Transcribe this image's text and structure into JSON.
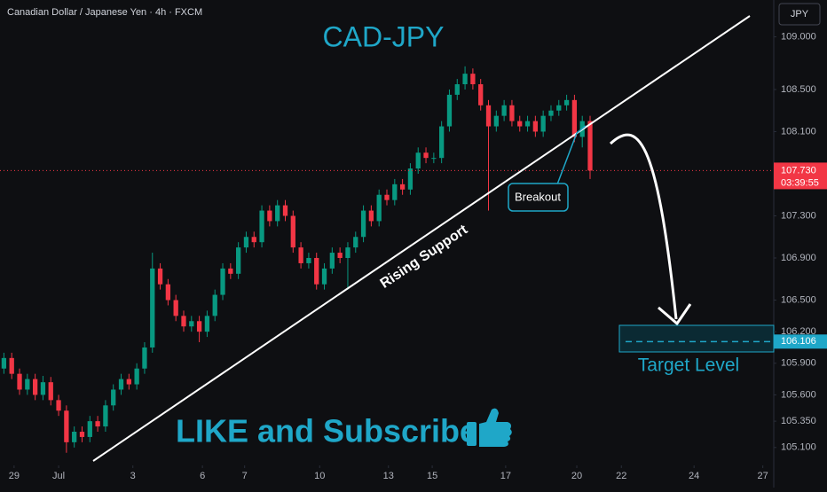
{
  "header": {
    "symbol": "Canadian Dollar / Japanese Yen · 4h · FXCM",
    "currency": "JPY"
  },
  "chart_data": {
    "type": "candlestick",
    "title": "CAD-JPY",
    "open": [
      105.85,
      105.95,
      105.8,
      105.65,
      105.75,
      105.6,
      105.72,
      105.55,
      105.45,
      105.15,
      105.25,
      105.2,
      105.35,
      105.3,
      105.5,
      105.65,
      105.75,
      105.7,
      105.85,
      106.05,
      106.8,
      106.65,
      106.5,
      106.35,
      106.25,
      106.3,
      106.2,
      106.35,
      106.55,
      106.8,
      106.75,
      107.0,
      107.1,
      107.05,
      107.35,
      107.25,
      107.4,
      107.3,
      107.0,
      106.85,
      106.9,
      106.65,
      106.8,
      106.95,
      106.9,
      107.0,
      107.1,
      107.35,
      107.25,
      107.5,
      107.45,
      107.6,
      107.55,
      107.75,
      107.9,
      107.85,
      107.85,
      108.15,
      108.45,
      108.55,
      108.65,
      108.55,
      108.35,
      108.15,
      108.25,
      108.35,
      108.2,
      108.15,
      108.2,
      108.1,
      108.25,
      108.3,
      108.35,
      108.4,
      108.05,
      108.2
    ],
    "high": [
      106.0,
      106.0,
      105.85,
      105.8,
      105.8,
      105.78,
      105.77,
      105.6,
      105.5,
      105.3,
      105.3,
      105.4,
      105.4,
      105.55,
      105.7,
      105.8,
      105.8,
      105.9,
      106.1,
      106.95,
      106.85,
      106.7,
      106.55,
      106.4,
      106.35,
      106.35,
      106.4,
      106.6,
      106.85,
      106.85,
      107.05,
      107.15,
      107.15,
      107.4,
      107.4,
      107.45,
      107.45,
      107.35,
      107.05,
      106.95,
      106.95,
      106.85,
      107.0,
      107.0,
      107.05,
      107.15,
      107.4,
      107.4,
      107.55,
      107.55,
      107.65,
      107.65,
      107.8,
      107.95,
      107.95,
      107.9,
      108.2,
      108.5,
      108.6,
      108.72,
      108.7,
      108.6,
      108.4,
      108.3,
      108.4,
      108.4,
      108.25,
      108.25,
      108.25,
      108.3,
      108.35,
      108.4,
      108.45,
      108.45,
      108.25,
      108.25
    ],
    "low": [
      105.8,
      105.75,
      105.6,
      105.6,
      105.55,
      105.55,
      105.5,
      105.4,
      105.05,
      105.1,
      105.15,
      105.15,
      105.25,
      105.25,
      105.45,
      105.6,
      105.65,
      105.65,
      105.8,
      106.0,
      106.6,
      106.45,
      106.3,
      106.2,
      106.2,
      106.1,
      106.15,
      106.3,
      106.5,
      106.7,
      106.7,
      106.95,
      107.0,
      107.0,
      107.2,
      107.2,
      107.25,
      106.95,
      106.8,
      106.8,
      106.6,
      106.6,
      106.75,
      106.85,
      106.6,
      106.95,
      107.05,
      107.2,
      107.2,
      107.4,
      107.4,
      107.5,
      107.5,
      107.7,
      107.8,
      107.8,
      107.8,
      108.1,
      108.4,
      108.5,
      108.5,
      108.3,
      107.35,
      108.1,
      108.2,
      108.15,
      108.1,
      108.1,
      108.05,
      108.05,
      108.2,
      108.25,
      108.3,
      108.0,
      107.95,
      107.65
    ],
    "close": [
      105.95,
      105.8,
      105.65,
      105.75,
      105.6,
      105.72,
      105.55,
      105.45,
      105.15,
      105.25,
      105.2,
      105.35,
      105.3,
      105.5,
      105.65,
      105.75,
      105.7,
      105.85,
      106.05,
      106.8,
      106.65,
      106.5,
      106.35,
      106.25,
      106.3,
      106.2,
      106.35,
      106.55,
      106.8,
      106.75,
      107.0,
      107.1,
      107.05,
      107.35,
      107.25,
      107.4,
      107.3,
      107.0,
      106.85,
      106.9,
      106.65,
      106.8,
      106.95,
      106.9,
      107.0,
      107.1,
      107.35,
      107.25,
      107.5,
      107.45,
      107.6,
      107.55,
      107.75,
      107.9,
      107.85,
      107.85,
      108.15,
      108.45,
      108.55,
      108.65,
      108.55,
      108.35,
      108.15,
      108.25,
      108.35,
      108.2,
      108.15,
      108.2,
      108.1,
      108.25,
      108.3,
      108.35,
      108.4,
      108.05,
      108.2,
      107.73
    ],
    "up_color": "#089981",
    "down_color": "#f23645",
    "xlim": [
      -0.5,
      98.5
    ],
    "xticks": [
      {
        "value": 1.3,
        "label": "29"
      },
      {
        "value": 7,
        "label": "Jul"
      },
      {
        "value": 16.5,
        "label": "3"
      },
      {
        "value": 25.4,
        "label": "6"
      },
      {
        "value": 30.8,
        "label": "7"
      },
      {
        "value": 40.4,
        "label": "10"
      },
      {
        "value": 49.2,
        "label": "13"
      },
      {
        "value": 54.8,
        "label": "15"
      },
      {
        "value": 64.2,
        "label": "17"
      },
      {
        "value": 73.3,
        "label": "20"
      },
      {
        "value": 79,
        "label": "22"
      },
      {
        "value": 88.3,
        "label": "24"
      },
      {
        "value": 97.1,
        "label": "27"
      }
    ],
    "ylim": [
      104.93,
      109.35
    ],
    "yticks": [
      {
        "value": 109,
        "label": "109.000"
      },
      {
        "value": 108.5,
        "label": "108.500"
      },
      {
        "value": 108.1,
        "label": "108.100"
      },
      {
        "value": 107.3,
        "label": "107.300"
      },
      {
        "value": 106.9,
        "label": "106.900"
      },
      {
        "value": 106.5,
        "label": "106.500"
      },
      {
        "value": 106.2,
        "label": "106.200"
      },
      {
        "value": 105.9,
        "label": "105.900"
      },
      {
        "value": 105.6,
        "label": "105.600"
      },
      {
        "value": 105.35,
        "label": "105.350"
      },
      {
        "value": 105.1,
        "label": "105.100"
      }
    ],
    "grid": false,
    "annotations": {
      "support": "Rising Support",
      "breakout": "Breakout",
      "target": "Target Level",
      "cta": "LIKE and Subscribe"
    },
    "price_line": {
      "value": 107.73,
      "label": "107.730",
      "countdown": "03:39:55",
      "color": "#f23645"
    },
    "target_line": {
      "value": 106.106,
      "label": "106.106",
      "color": "#1fa7c8"
    }
  }
}
